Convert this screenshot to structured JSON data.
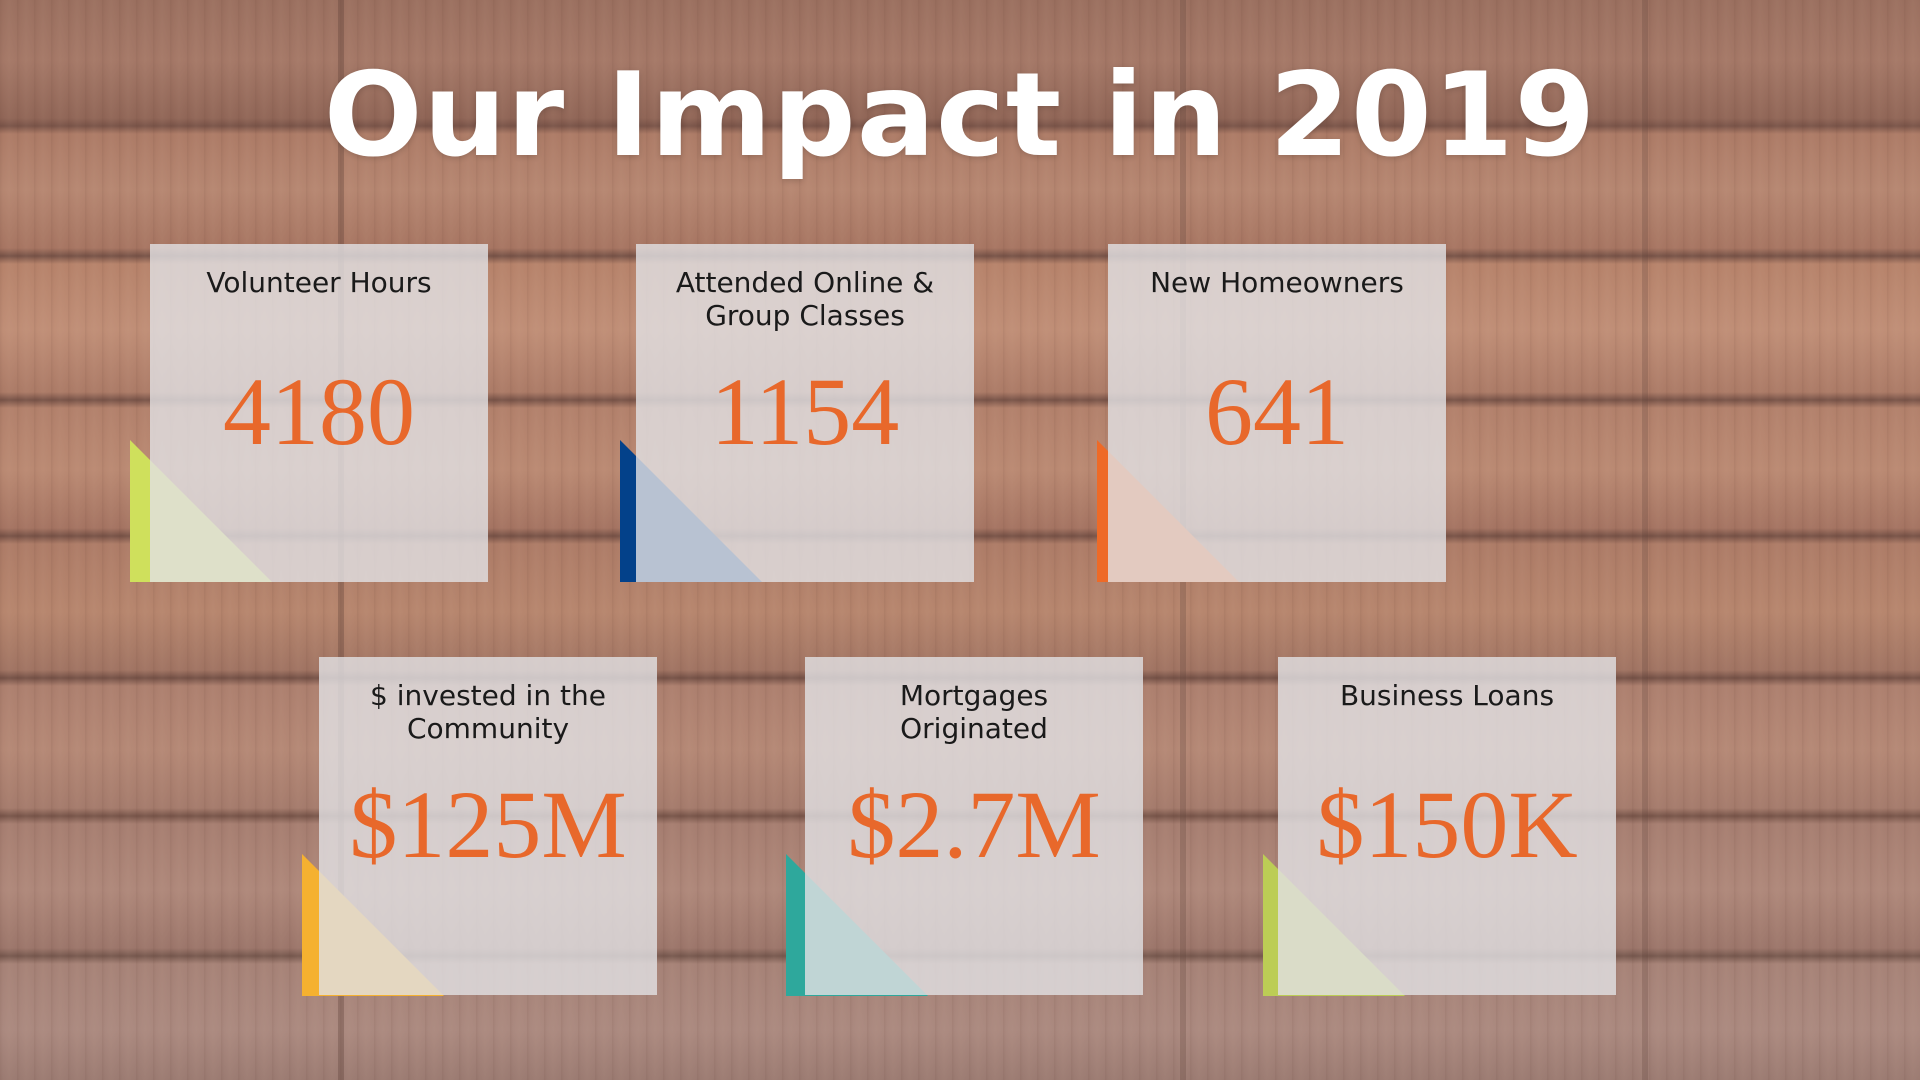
{
  "title": "Our Impact in 2019",
  "colors": {
    "value_text": "#e8682b",
    "triangles": [
      "#cfe05c",
      "#03418a",
      "#ee6a27",
      "#f5b130",
      "#2ea89c",
      "#bccd55"
    ]
  },
  "stats": [
    {
      "label": "Volunteer Hours",
      "value": "4180"
    },
    {
      "label": "Attended Online & Group Classes",
      "value": "1154"
    },
    {
      "label": "New Homeowners",
      "value": "641"
    },
    {
      "label": "$ invested in the Community",
      "value": "$125M"
    },
    {
      "label": "Mortgages Originated",
      "value": "$2.7M"
    },
    {
      "label": "Business Loans",
      "value": "$150K"
    }
  ]
}
